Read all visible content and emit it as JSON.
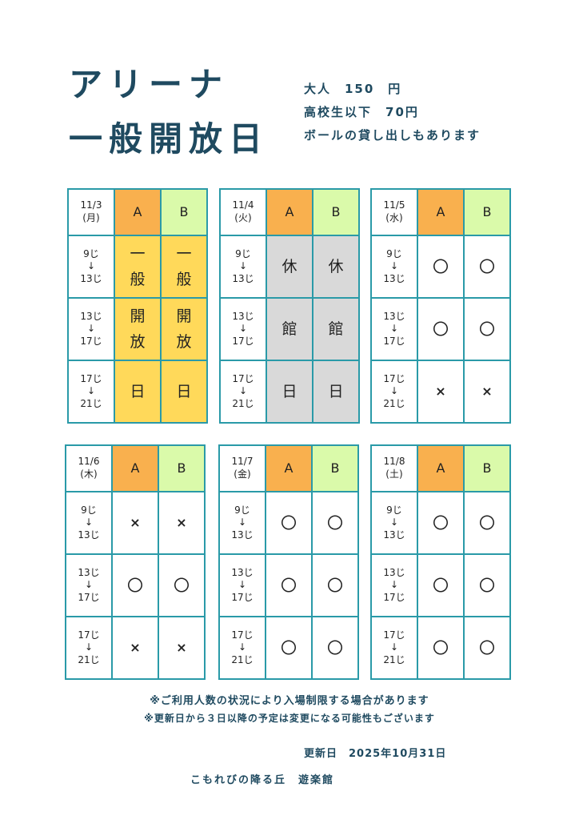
{
  "title": {
    "line1": "アリーナ",
    "line2": "一般開放日"
  },
  "info": {
    "adult": "大人　150　円",
    "student": "高校生以下　70円",
    "ball": "ボールの貸し出しもあります"
  },
  "columns": {
    "a": "A",
    "b": "B"
  },
  "times": [
    "9じ\n↓\n13じ",
    "13じ\n↓\n17じ",
    "17じ\n↓\n21じ"
  ],
  "colors": {
    "border": "#2a9aa8",
    "a_header": "#f9b04e",
    "b_header": "#dafaaa",
    "open_day": "#ffd95a",
    "closed": "#d9d9d9",
    "text": "#1f4a60"
  },
  "panels": [
    {
      "date": "11/3\n(月)",
      "fill": "open_day",
      "cells": [
        [
          "一\n般",
          "一\n般"
        ],
        [
          "開\n放",
          "開\n放"
        ],
        [
          "日",
          "日"
        ]
      ]
    },
    {
      "date": "11/4\n(火)",
      "fill": "closed",
      "cells": [
        [
          "休",
          "休"
        ],
        [
          "館",
          "館"
        ],
        [
          "日",
          "日"
        ]
      ]
    },
    {
      "date": "11/5\n(水)",
      "fill": "",
      "cells": [
        [
          "〇",
          "〇"
        ],
        [
          "〇",
          "〇"
        ],
        [
          "×",
          "×"
        ]
      ]
    },
    {
      "date": "11/6\n(木)",
      "fill": "",
      "cells": [
        [
          "×",
          "×"
        ],
        [
          "〇",
          "〇"
        ],
        [
          "×",
          "×"
        ]
      ]
    },
    {
      "date": "11/7\n(金)",
      "fill": "",
      "cells": [
        [
          "〇",
          "〇"
        ],
        [
          "〇",
          "〇"
        ],
        [
          "〇",
          "〇"
        ]
      ]
    },
    {
      "date": "11/8\n(土)",
      "fill": "",
      "cells": [
        [
          "〇",
          "〇"
        ],
        [
          "〇",
          "〇"
        ],
        [
          "〇",
          "〇"
        ]
      ]
    }
  ],
  "notes": {
    "note1": "※ご利用人数の状況により入場制限する場合があります",
    "note2": "※更新日から３日以降の予定は変更になる可能性もございます",
    "updated": "更新日　2025年10月31日",
    "venue": "こもれびの降る丘　遊楽館"
  }
}
